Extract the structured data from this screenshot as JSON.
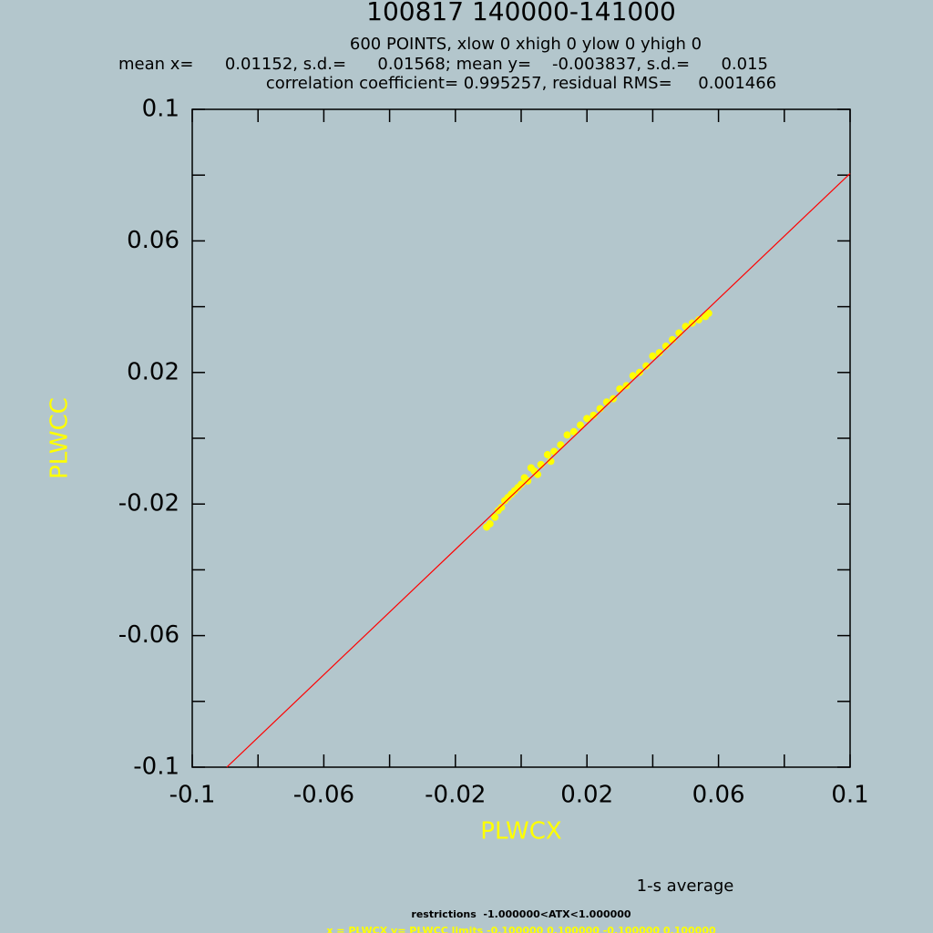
{
  "chart_data": {
    "type": "scatter",
    "title": "100817 140000-141000",
    "subtitle_lines": [
      "600 POINTS, xlow 0 xhigh 0 ylow 0 yhigh 0",
      "mean x=      0.01152, s.d.=      0.01568; mean y=    -0.003837, s.d.=      0.015",
      "correlation coefficient= 0.995257, residual RMS=     0.001466"
    ],
    "x_label": "PLWCX",
    "y_label": "PLWCC",
    "color": "#ffff00",
    "x": [
      -0.0105,
      -0.0095,
      -0.008,
      -0.007,
      -0.006,
      -0.005,
      -0.004,
      -0.003,
      -0.002,
      -0.001,
      0.0,
      0.001,
      0.002,
      0.003,
      0.004,
      0.005,
      0.006,
      0.008,
      0.009,
      0.01,
      0.012,
      0.014,
      0.016,
      0.018,
      0.02,
      0.022,
      0.024,
      0.026,
      0.028,
      0.03,
      0.032,
      0.034,
      0.036,
      0.038,
      0.04,
      0.042,
      0.044,
      0.046,
      0.048,
      0.05,
      0.052,
      0.054,
      0.056,
      0.057
    ],
    "values": [
      -0.027,
      -0.026,
      -0.024,
      -0.022,
      -0.021,
      -0.019,
      -0.018,
      -0.017,
      -0.016,
      -0.015,
      -0.014,
      -0.012,
      -0.013,
      -0.009,
      -0.01,
      -0.011,
      -0.008,
      -0.005,
      -0.007,
      -0.004,
      -0.002,
      0.001,
      0.002,
      0.004,
      0.006,
      0.007,
      0.009,
      0.011,
      0.012,
      0.015,
      0.016,
      0.019,
      0.02,
      0.022,
      0.025,
      0.026,
      0.028,
      0.03,
      0.032,
      0.034,
      0.035,
      0.036,
      0.037,
      0.038
    ],
    "fit_line": {
      "color": "#ff0000",
      "x": [
        -0.0895,
        0.1
      ],
      "values": [
        -0.1,
        0.0805
      ]
    },
    "xlim": [
      -0.1,
      0.1
    ],
    "ylim": [
      -0.1,
      0.1
    ],
    "xticks": [
      -0.1,
      -0.06,
      -0.02,
      0.02,
      0.06,
      0.1
    ],
    "yticks": [
      -0.1,
      -0.06,
      -0.02,
      0.02,
      0.06,
      0.1
    ],
    "xminor": [
      -0.08,
      -0.04,
      0,
      0.04,
      0.08
    ],
    "yminor": [
      -0.08,
      -0.04,
      0,
      0.04,
      0.08
    ],
    "footer": {
      "note": "1-s average",
      "restrictions": "restrictions  -1.000000<ATX<1.000000",
      "limits": "x = PLWCX y= PLWCC limits -0.100000 0.100000 -0.100000 0.100000"
    }
  }
}
